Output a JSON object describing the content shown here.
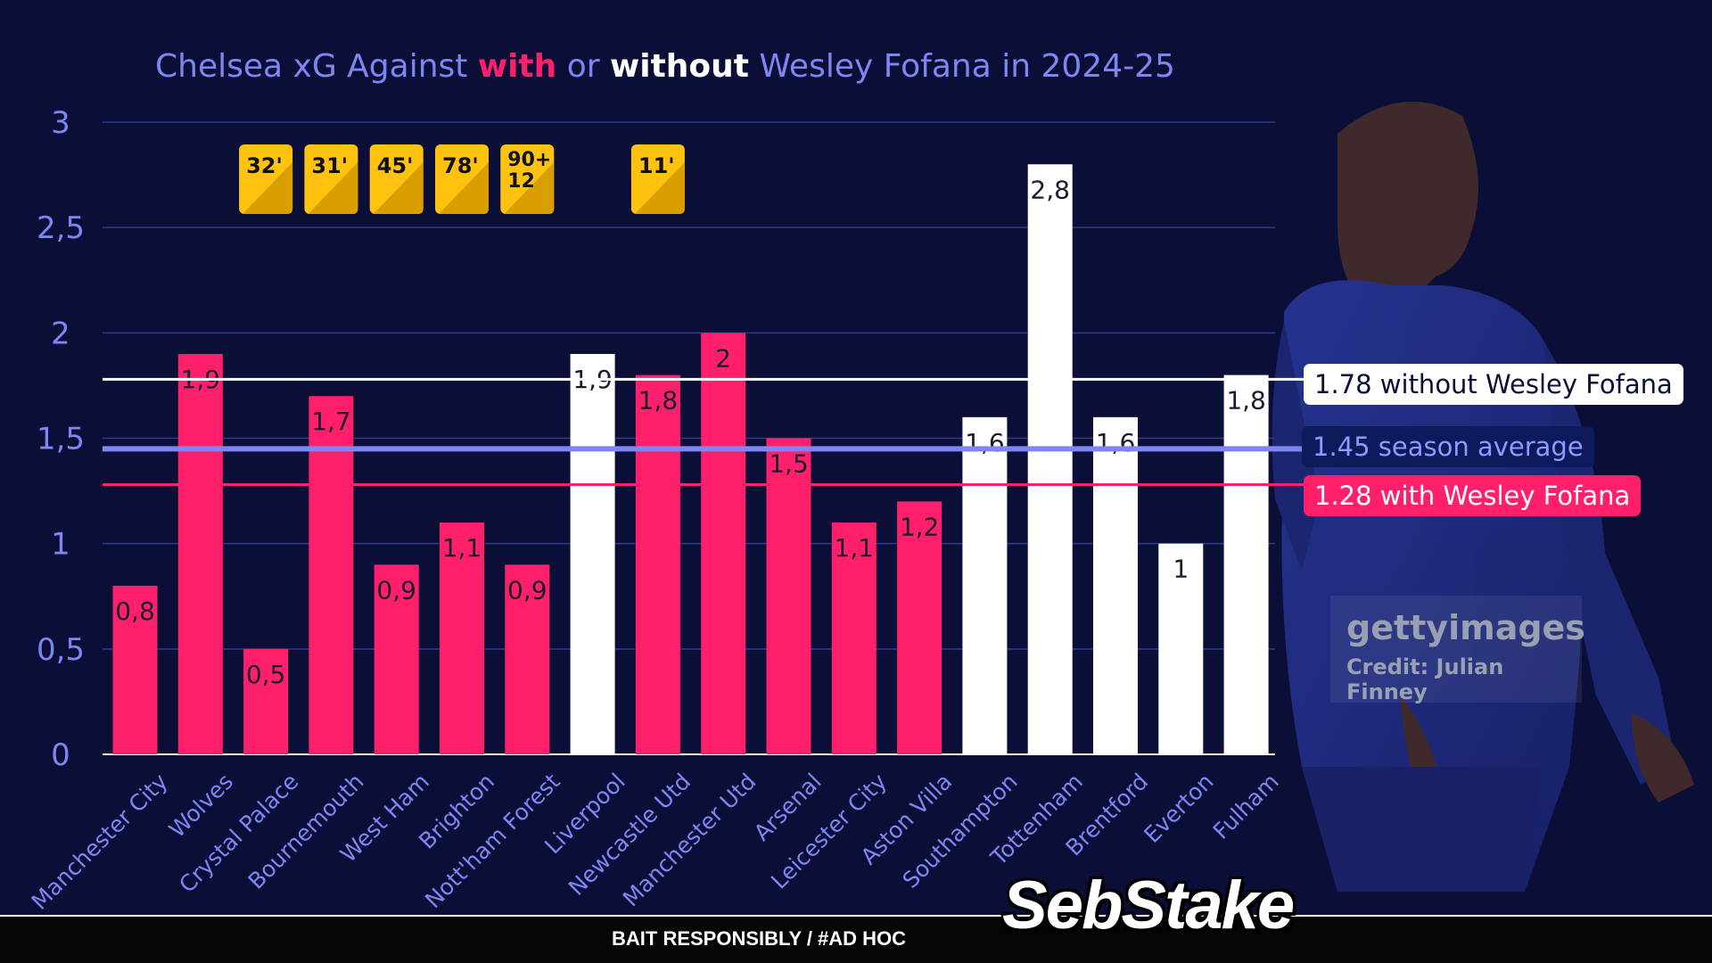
{
  "title": {
    "part1": "Chelsea xG Against ",
    "with": "with",
    "part2": " or ",
    "without": "without",
    "part3": " Wesley Fofana in 2024-25"
  },
  "colors": {
    "with": "#ff1f6b",
    "without": "#ffffff",
    "average": "#7d86f2",
    "card": "#ffc20e",
    "background": "#0b0f38"
  },
  "chart_data": {
    "type": "bar",
    "ylim": [
      0,
      3
    ],
    "yticks": [
      "0",
      "0,5",
      "1",
      "1,5",
      "2",
      "2,5",
      "3"
    ],
    "grid": true,
    "categories": [
      "Manchester City",
      "Wolves",
      "Crystal Palace",
      "Bournemouth",
      "West Ham",
      "Brighton",
      "Nott'ham Forest",
      "Liverpool",
      "Newcastle Utd",
      "Manchester Utd",
      "Arsenal",
      "Leicester City",
      "Aston Villa",
      "Southampton",
      "Tottenham",
      "Brentford",
      "Everton",
      "Fulham"
    ],
    "values": [
      0.8,
      1.9,
      0.5,
      1.7,
      0.9,
      1.1,
      0.9,
      1.9,
      1.8,
      2.0,
      1.5,
      1.1,
      1.2,
      1.6,
      2.8,
      1.6,
      1.0,
      1.8
    ],
    "value_labels": [
      "0,8",
      "1,9",
      "0,5",
      "1,7",
      "0,9",
      "1,1",
      "0,9",
      "1,9",
      "1,8",
      "2",
      "1,5",
      "1,1",
      "1,2",
      "1,6",
      "2,8",
      "1,6",
      "1",
      "1,8"
    ],
    "with_fofana": [
      true,
      true,
      true,
      true,
      true,
      true,
      true,
      false,
      true,
      true,
      true,
      true,
      true,
      false,
      false,
      false,
      false,
      false
    ],
    "cards": [
      {
        "category_index": 2,
        "label": "32'"
      },
      {
        "category_index": 3,
        "label": "31'"
      },
      {
        "category_index": 4,
        "label": "45'"
      },
      {
        "category_index": 5,
        "label": "78'"
      },
      {
        "category_index": 6,
        "label": "90+\n12"
      },
      {
        "category_index": 8,
        "label": "11'"
      }
    ],
    "reference_lines": [
      {
        "value": 1.78,
        "label": "1.78 without Wesley Fofana",
        "color": "#ffffff"
      },
      {
        "value": 1.45,
        "label": "1.45 season average",
        "color": "#7d86f2"
      },
      {
        "value": 1.28,
        "label": "1.28 with Wesley Fofana",
        "color": "#ff1f6b"
      }
    ]
  },
  "watermark": {
    "brand": "gettyimages",
    "credit": "Credit: Julian Finney"
  },
  "footer": {
    "text": "BAIT RESPONSIBLY / #AD HOC",
    "logo": "SebStake"
  }
}
